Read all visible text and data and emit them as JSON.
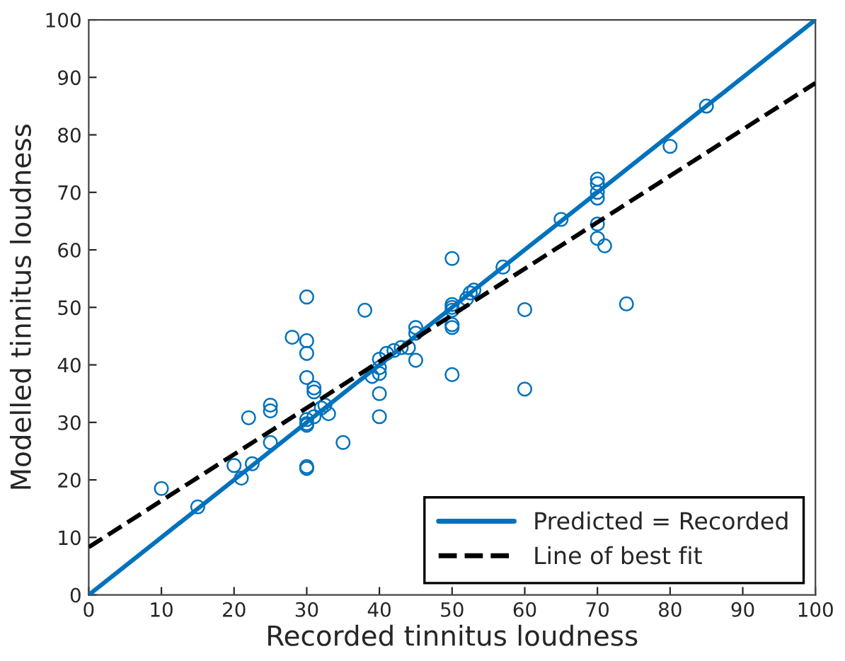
{
  "chart_data": {
    "type": "scatter",
    "xlabel": "Recorded tinnitus loudness",
    "ylabel": "Modelled tinnitus loudness",
    "xlim": [
      0,
      100
    ],
    "ylim": [
      0,
      100
    ],
    "xticks": [
      0,
      10,
      20,
      30,
      40,
      50,
      60,
      70,
      80,
      90,
      100
    ],
    "yticks": [
      0,
      10,
      20,
      30,
      40,
      50,
      60,
      70,
      80,
      90,
      100
    ],
    "grid": false,
    "legend": "bottom right",
    "series": [
      {
        "marker": "circle",
        "color": "#0072bd",
        "x": [
          10,
          15,
          20,
          21,
          22,
          22.5,
          25,
          25,
          25,
          28,
          30,
          30,
          30,
          30,
          30,
          30,
          30,
          30,
          30,
          31,
          31,
          31,
          32,
          32.5,
          33,
          35,
          38,
          39,
          40,
          40,
          40,
          40,
          40,
          41,
          42,
          43,
          44,
          45,
          45,
          45,
          50,
          50,
          50,
          50,
          50,
          50,
          50,
          52,
          52.5,
          53,
          57,
          60,
          60,
          65,
          70,
          70,
          70,
          70,
          70,
          70,
          71,
          74,
          80,
          85
        ],
        "values": [
          18.5,
          15.3,
          22.5,
          20.3,
          30.8,
          22.8,
          26.5,
          32,
          33,
          44.8,
          51.8,
          44.2,
          42,
          37.8,
          30.5,
          29.8,
          29.5,
          22,
          22.3,
          36,
          35.3,
          31,
          32.5,
          33,
          31.5,
          26.5,
          49.5,
          38,
          41,
          38.5,
          39.5,
          35,
          31,
          42,
          42.5,
          43,
          43,
          46.5,
          45.5,
          40.8,
          58.5,
          50.5,
          50,
          49.5,
          47,
          46.5,
          38.3,
          51.5,
          52.5,
          53,
          57,
          49.6,
          35.8,
          65.3,
          72.3,
          71.5,
          70,
          69,
          64.5,
          62,
          60.7,
          50.6,
          78,
          85
        ]
      },
      {
        "type": "line",
        "name": "Predicted = Recorded",
        "color": "#0072bd",
        "line_style": "solid",
        "marker": "none",
        "x": [
          0,
          100
        ],
        "values": [
          0,
          100
        ]
      },
      {
        "type": "line",
        "name": "Line of best fit",
        "color": "#000000",
        "line_style": "dashed",
        "marker": "none",
        "x": [
          0,
          100
        ],
        "values": [
          8.3,
          89
        ]
      }
    ]
  }
}
